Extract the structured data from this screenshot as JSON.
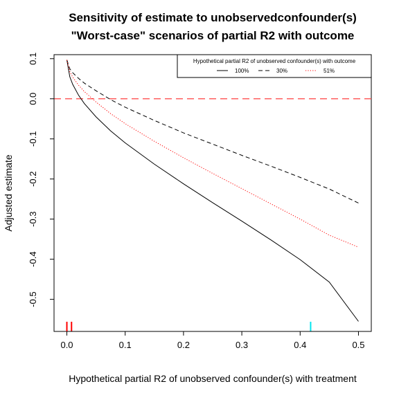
{
  "chart_data": {
    "type": "line",
    "title": "Sensitivity of estimate to unobservedconfounder(s)",
    "subtitle": "\"Worst-case\" scenarios of partial R2 with outcome",
    "xlabel": "Hypothetical partial R2 of unobserved confounder(s) with treatment",
    "ylabel": "Adjusted estimate",
    "xlim": [
      -0.022,
      0.522
    ],
    "ylim": [
      -0.58,
      0.11
    ],
    "x_ticks": [
      "0.0",
      "0.1",
      "0.2",
      "0.3",
      "0.4",
      "0.5"
    ],
    "x_tick_values": [
      0,
      0.1,
      0.2,
      0.3,
      0.4,
      0.5
    ],
    "y_ticks": [
      "0.1",
      "0.0",
      "-0.1",
      "-0.2",
      "-0.3",
      "-0.4",
      "-0.5"
    ],
    "y_tick_values": [
      0.1,
      0.0,
      -0.1,
      -0.2,
      -0.3,
      -0.4,
      -0.5
    ],
    "grid": false,
    "legend": {
      "placement": "top-right",
      "title": "Hypothetical partial R2 of unobserved confounder(s) with outcome"
    },
    "series": [
      {
        "name": "100%",
        "color": "#000000",
        "dash": "solid",
        "x": [
          0,
          0.005,
          0.01,
          0.02,
          0.03,
          0.05,
          0.075,
          0.1,
          0.15,
          0.2,
          0.25,
          0.3,
          0.35,
          0.4,
          0.45,
          0.5
        ],
        "y": [
          0.097,
          0.055,
          0.036,
          0.009,
          -0.012,
          -0.045,
          -0.08,
          -0.11,
          -0.163,
          -0.212,
          -0.259,
          -0.305,
          -0.352,
          -0.401,
          -0.457,
          -0.555
        ]
      },
      {
        "name": "30%",
        "color": "#000000",
        "dash": "dashed",
        "x": [
          0,
          0.005,
          0.01,
          0.02,
          0.03,
          0.05,
          0.075,
          0.1,
          0.15,
          0.2,
          0.25,
          0.3,
          0.35,
          0.4,
          0.45,
          0.5
        ],
        "y": [
          0.097,
          0.075,
          0.065,
          0.051,
          0.039,
          0.02,
          -0.002,
          -0.021,
          -0.054,
          -0.085,
          -0.113,
          -0.141,
          -0.168,
          -0.196,
          -0.225,
          -0.26
        ]
      },
      {
        "name": "51%",
        "color": "#ff0000",
        "dash": "dotted",
        "x": [
          0,
          0.005,
          0.01,
          0.02,
          0.03,
          0.05,
          0.075,
          0.1,
          0.15,
          0.2,
          0.25,
          0.3,
          0.35,
          0.4,
          0.45,
          0.5
        ],
        "y": [
          0.097,
          0.068,
          0.054,
          0.034,
          0.018,
          -0.008,
          -0.037,
          -0.062,
          -0.106,
          -0.147,
          -0.186,
          -0.224,
          -0.262,
          -0.3,
          -0.34,
          -0.37
        ]
      }
    ],
    "reference_line": {
      "y": 0.0,
      "color": "#ff4040",
      "dash": "dashed"
    },
    "rug_marks": [
      {
        "x": 0.0,
        "color": "#ff0000"
      },
      {
        "x": 0.008,
        "color": "#ff0000"
      },
      {
        "x": 0.418,
        "color": "#00e5ee"
      }
    ]
  }
}
